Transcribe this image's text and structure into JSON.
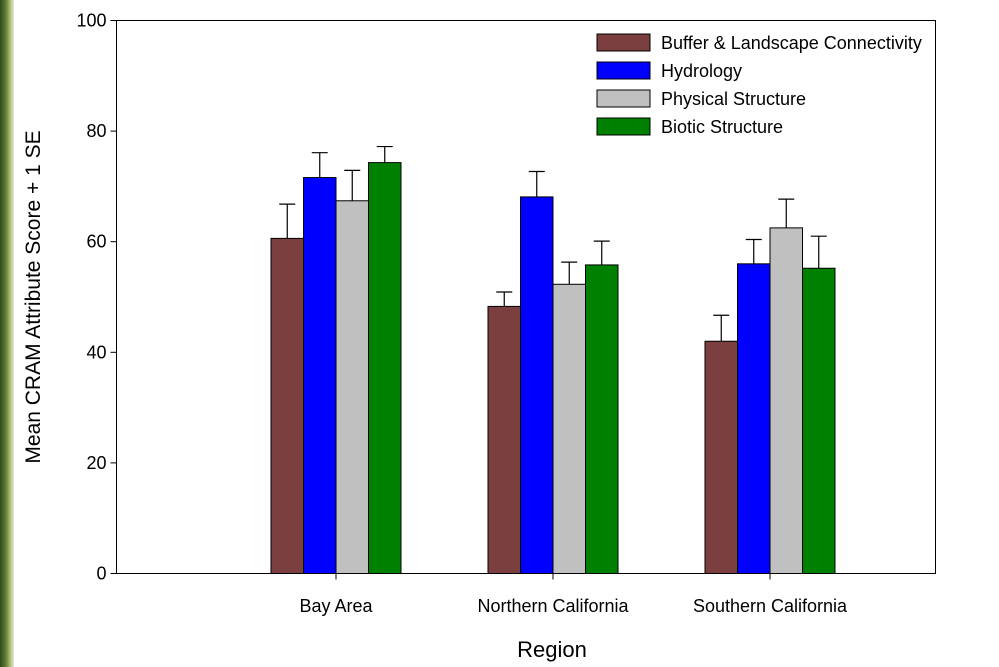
{
  "chart_data": {
    "type": "bar",
    "title": "",
    "xlabel": "Region",
    "ylabel": "Mean CRAM Attribute Score + 1 SE",
    "ylim": [
      0,
      100
    ],
    "yticks": [
      "0",
      "20",
      "40",
      "60",
      "80",
      "100"
    ],
    "categories": [
      "Bay Area",
      "Northern California",
      "Southern California"
    ],
    "series": [
      {
        "name": "Buffer & Landscape Connectivity",
        "color": "#7b3f3f",
        "values": [
          60.6,
          48.3,
          42.0
        ],
        "errors": [
          6.2,
          2.6,
          4.7
        ]
      },
      {
        "name": "Hydrology",
        "color": "#0000ff",
        "values": [
          71.6,
          68.1,
          56.0
        ],
        "errors": [
          4.5,
          4.6,
          4.4
        ]
      },
      {
        "name": "Physical Structure",
        "color": "#c0c0c0",
        "values": [
          67.4,
          52.3,
          62.5
        ],
        "errors": [
          5.5,
          4.0,
          5.2
        ]
      },
      {
        "name": "Biotic Structure",
        "color": "#008000",
        "values": [
          74.3,
          55.8,
          55.2
        ],
        "errors": [
          2.9,
          4.3,
          5.8
        ]
      }
    ],
    "legend": "top-right",
    "grid": false,
    "error_bars": "+1 SE"
  }
}
